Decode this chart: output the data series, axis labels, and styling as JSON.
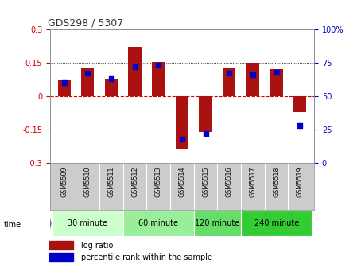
{
  "title": "GDS298 / 5307",
  "samples": [
    "GSM5509",
    "GSM5510",
    "GSM5511",
    "GSM5512",
    "GSM5513",
    "GSM5514",
    "GSM5515",
    "GSM5516",
    "GSM5517",
    "GSM5518",
    "GSM5519"
  ],
  "log_ratio": [
    0.07,
    0.13,
    0.08,
    0.22,
    0.155,
    -0.24,
    -0.16,
    0.13,
    0.15,
    0.12,
    -0.07
  ],
  "percentile": [
    60,
    67,
    63,
    72,
    73,
    18,
    22,
    67,
    66,
    68,
    28
  ],
  "ylim": [
    -0.3,
    0.3
  ],
  "yticks_left": [
    -0.3,
    -0.15,
    0,
    0.15,
    0.3
  ],
  "yticks_right": [
    0,
    25,
    50,
    75,
    100
  ],
  "groups": [
    {
      "label": "30 minute",
      "start": 0,
      "end": 3,
      "color": "#ccffcc"
    },
    {
      "label": "60 minute",
      "start": 3,
      "end": 6,
      "color": "#99ee99"
    },
    {
      "label": "120 minute",
      "start": 6,
      "end": 8,
      "color": "#66dd66"
    },
    {
      "label": "240 minute",
      "start": 8,
      "end": 11,
      "color": "#33cc33"
    }
  ],
  "bar_color": "#aa1111",
  "dot_color": "#0000cc",
  "zero_line_color": "#cc0000",
  "grid_color": "#000000",
  "background_color": "#ffffff",
  "sample_bg_color": "#cccccc",
  "legend_lr_label": "log ratio",
  "legend_pr_label": "percentile rank within the sample"
}
